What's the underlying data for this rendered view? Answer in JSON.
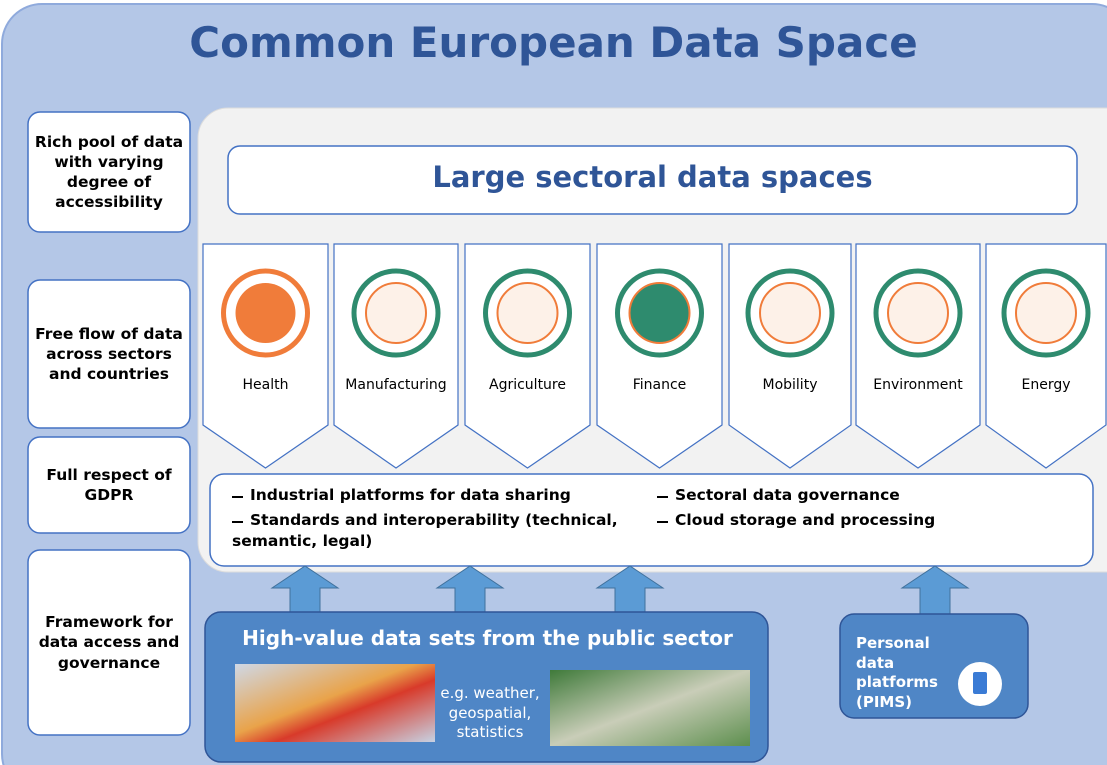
{
  "header": {
    "title": "Common European Data Space"
  },
  "side_boxes": [
    "Rich pool of data with varying degree of accessibility",
    "Free flow of data across sectors and countries",
    "Full respect of GDPR",
    "Framework for data access and governance"
  ],
  "sectoral": {
    "title": "Large sectoral data spaces",
    "sectors": [
      "Health",
      "Manufacturing",
      "Agriculture",
      "Finance",
      "Mobility",
      "Environment",
      "Energy"
    ],
    "features": [
      "Industrial platforms for data sharing",
      "Sectoral data governance",
      "Standards and interoperability (technical, semantic, legal)",
      "Cloud storage and processing"
    ]
  },
  "public_sector": {
    "title": "High-value data sets from the public sector",
    "examples": "e.g. weather, geospatial, statistics"
  },
  "personal": {
    "title": "Personal data platforms (PIMS)"
  }
}
